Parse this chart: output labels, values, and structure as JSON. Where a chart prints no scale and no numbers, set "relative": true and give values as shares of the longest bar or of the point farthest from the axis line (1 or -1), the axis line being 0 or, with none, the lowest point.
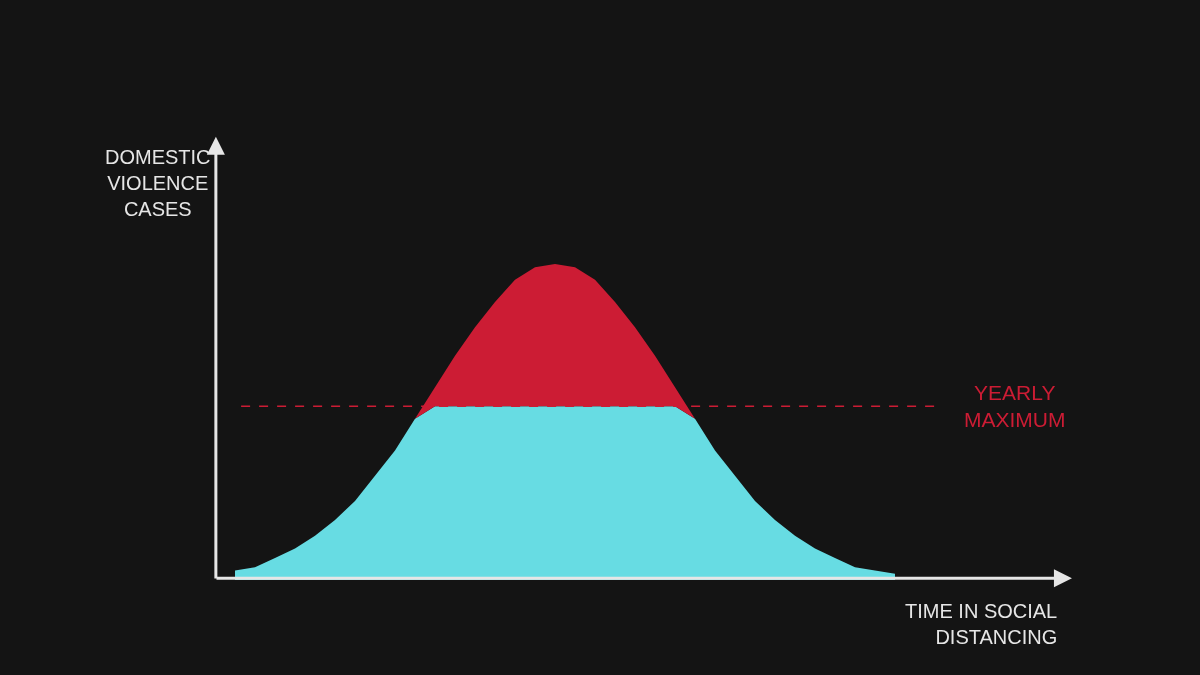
{
  "chart_data": {
    "type": "area",
    "relative": true,
    "stacked": true,
    "xlabel": "TIME IN SOCIAL\nDISTANCING",
    "ylabel": "DOMESTIC\nVIOLENCE\nCASES",
    "categories": [
      null,
      null,
      null,
      null,
      null,
      null,
      null,
      null,
      null,
      null,
      null,
      null,
      null,
      null,
      null,
      null,
      null,
      null,
      null,
      null,
      null,
      null,
      null,
      null,
      null,
      null,
      null,
      null,
      null,
      null,
      null,
      null,
      null,
      null
    ],
    "series": [
      {
        "color": "#67dce3",
        "values": [
          0.03,
          0.04,
          0.07,
          0.1,
          0.14,
          0.19,
          0.25,
          0.33,
          0.41,
          0.51,
          0.55,
          0.55,
          0.55,
          0.55,
          0.55,
          0.55,
          0.55,
          0.55,
          0.55,
          0.55,
          0.55,
          0.55,
          0.55,
          0.51,
          0.41,
          0.33,
          0.25,
          0.19,
          0.14,
          0.1,
          0.07,
          0.04,
          0.03,
          0.02
        ]
      },
      {
        "color": "#cc1c34",
        "values": [
          0,
          0,
          0,
          0,
          0,
          0,
          0,
          0,
          0,
          0,
          0.06,
          0.16,
          0.25,
          0.33,
          0.4,
          0.44,
          0.45,
          0.44,
          0.4,
          0.33,
          0.25,
          0.16,
          0.06,
          0,
          0,
          0,
          0,
          0,
          0,
          0,
          0,
          0,
          0,
          0
        ]
      }
    ],
    "ref_lines": [
      {
        "axis": "y",
        "value": 0.55,
        "label": "YEARLY\nMAXIMUM",
        "color": "#cc1c34",
        "line_style": "dashed"
      }
    ]
  }
}
